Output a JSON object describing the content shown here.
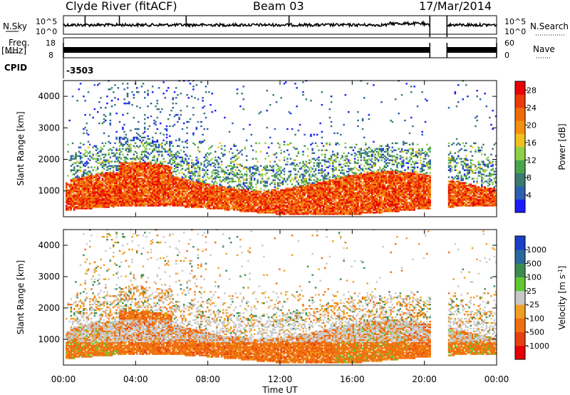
{
  "header": {
    "title": "Clyde River (fitACF)",
    "beam": "Beam 03",
    "date": "17/Mar/2014"
  },
  "strip_labels": {
    "nsky": "N.Sky",
    "nsearch": "N.Search",
    "freq": "Freq.",
    "freq_unit": "[MHz]",
    "nave": "Nave",
    "cpid": "CPID",
    "cpid_value": "-3503"
  },
  "strip_ticks": {
    "noise_left": [
      "10^5",
      "10^0"
    ],
    "noise_right": [
      "10^5",
      "10^0"
    ],
    "freq_left": [
      "18",
      "8"
    ],
    "freq_right": [
      "60",
      "0"
    ]
  },
  "colors": {
    "data_gap_background": "#ffffff",
    "trace": "#000000"
  },
  "chart_data": [
    {
      "type": "heatmap",
      "panel": "power",
      "ylabel": "Slant Range [km]",
      "xlabel": "",
      "x_ticks": [
        "00:00",
        "04:00",
        "08:00",
        "12:00",
        "16:00",
        "20:00",
        "00:00"
      ],
      "xlim_hours": [
        0,
        24
      ],
      "y_ticks": [
        1000,
        2000,
        3000,
        4000
      ],
      "ylim": [
        180,
        4500
      ],
      "colorbar": {
        "label": "Power [dB]",
        "ticks": [
          4,
          8,
          12,
          16,
          20,
          24,
          28
        ],
        "range": [
          0,
          30
        ],
        "colors": [
          "#1c1cff",
          "#2c5fb0",
          "#3a7a70",
          "#4aa44a",
          "#8fd048",
          "#f0c020",
          "#f49010",
          "#f06a08",
          "#ec3a08",
          "#ea0000"
        ]
      },
      "data_gap_hours": [
        20.3,
        21.25
      ],
      "summary": "Strong backscatter (20-30 dB) in 500-1500 km band throughout day; weaker (4-16 dB) scatter at 1500-2500 km; sparse echoes up to 4500 km"
    },
    {
      "type": "heatmap",
      "panel": "velocity",
      "ylabel": "Slant Range [km]",
      "xlabel": "Time UT",
      "x_ticks": [
        "00:00",
        "04:00",
        "08:00",
        "12:00",
        "16:00",
        "20:00",
        "00:00"
      ],
      "xlim_hours": [
        0,
        24
      ],
      "y_ticks": [
        1000,
        2000,
        3000,
        4000
      ],
      "ylim": [
        180,
        4500
      ],
      "colorbar": {
        "label": "Velocity [m s^-1]",
        "ticks": [
          1000,
          500,
          100,
          25,
          -25,
          -100,
          -500,
          -1000
        ],
        "colors": [
          "#1840c8",
          "#2868a0",
          "#3c8c50",
          "#60c830",
          "#c8c8c8",
          "#f0a020",
          "#f07010",
          "#e84010",
          "#e80000"
        ]
      },
      "data_gap_hours": [
        20.3,
        21.25
      ],
      "summary": "Mostly orange (-100 to -500 m/s, away) in 500-1500 km band; grey ground scatter (~0 m/s) near 1000-1500 km; green (toward) patches early and late"
    }
  ]
}
